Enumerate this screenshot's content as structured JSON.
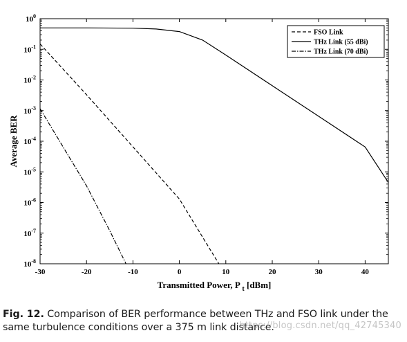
{
  "chart_data": {
    "type": "line",
    "xlabel": "Transmitted Power, P",
    "xlabel_subscript": "t",
    "xlabel_unit": "[dBm]",
    "ylabel": "Average BER",
    "xlim": [
      -30,
      45
    ],
    "ylim": [
      1e-08,
      1
    ],
    "yscale": "log",
    "x_ticks": [
      -30,
      -20,
      -10,
      0,
      10,
      20,
      30,
      40
    ],
    "y_ticks": [
      {
        "value": 1,
        "base": "10",
        "exp": "0"
      },
      {
        "value": 0.1,
        "base": "10",
        "exp": "-1"
      },
      {
        "value": 0.01,
        "base": "10",
        "exp": "-2"
      },
      {
        "value": 0.001,
        "base": "10",
        "exp": "-3"
      },
      {
        "value": 0.0001,
        "base": "10",
        "exp": "-4"
      },
      {
        "value": 1e-05,
        "base": "10",
        "exp": "-5"
      },
      {
        "value": 1e-06,
        "base": "10",
        "exp": "-6"
      },
      {
        "value": 1e-07,
        "base": "10",
        "exp": "-7"
      },
      {
        "value": 1e-08,
        "base": "10",
        "exp": "-8"
      }
    ],
    "grid": false,
    "legend_position": "top-right",
    "series": [
      {
        "name": "FSO Link",
        "style": "dashed",
        "x": [
          -30,
          -20,
          -10,
          0,
          8.5
        ],
        "y": [
          0.15,
          0.0033,
          6.57e-05,
          1.3e-06,
          1e-08
        ]
      },
      {
        "name": "THz Link (55 dBi)",
        "style": "solid",
        "x": [
          -30,
          -20,
          -10,
          -5,
          0,
          5,
          10,
          20,
          30,
          40,
          45
        ],
        "y": [
          0.5,
          0.5,
          0.49,
          0.46,
          0.38,
          0.2,
          0.065,
          0.0065,
          0.00065,
          6.5e-05,
          4.5e-06
        ]
      },
      {
        "name": "THz Link (70 dBi)",
        "style": "dashdot",
        "x": [
          -30,
          -20,
          -15,
          -11.5
        ],
        "y": [
          0.00115,
          3.5e-06,
          1.2e-07,
          1e-08
        ]
      }
    ]
  },
  "caption": {
    "label": "Fig. 12.",
    "text": "Comparison of BER performance between THz and FSO link under the same turbulence conditions over a 375 m link distance."
  },
  "watermark": "https://blog.csdn.net/qq_42745340"
}
